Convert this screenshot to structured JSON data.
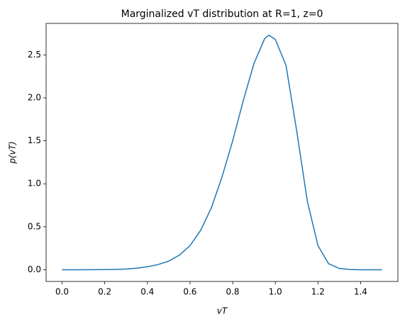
{
  "chart_data": {
    "type": "line",
    "title": "Marginalized vT distribution at R=1, z=0",
    "x_label": "vT",
    "y_label": "p(vT)",
    "x": [
      0,
      0.05,
      0.1,
      0.15,
      0.2,
      0.25,
      0.3,
      0.35,
      0.4,
      0.45,
      0.5,
      0.55,
      0.6,
      0.65,
      0.7,
      0.75,
      0.8,
      0.85,
      0.9,
      0.95,
      0.97,
      1.0,
      1.05,
      1.1,
      1.15,
      1.2,
      1.25,
      1.3,
      1.35,
      1.4,
      1.45,
      1.5
    ],
    "series": [
      {
        "color": "#1f77b4",
        "values": [
          0,
          0,
          0,
          0.001,
          0.002,
          0.004,
          0.008,
          0.018,
          0.035,
          0.06,
          0.1,
          0.17,
          0.28,
          0.46,
          0.72,
          1.08,
          1.5,
          1.97,
          2.4,
          2.69,
          2.73,
          2.68,
          2.38,
          1.62,
          0.8,
          0.28,
          0.07,
          0.015,
          0.003,
          0,
          0,
          0
        ]
      }
    ],
    "xlim": [
      -0.075,
      1.575
    ],
    "xticks": [
      {
        "value": 0,
        "label": "0.0"
      },
      0.2,
      0.4,
      0.6,
      0.8,
      {
        "value": 1,
        "label": "1.0"
      },
      1.2,
      1.4
    ],
    "ylim": [
      -0.1365,
      2.8665
    ],
    "yticks": [
      {
        "value": 0,
        "label": "0.0"
      },
      0.5,
      {
        "value": 1,
        "label": "1.0"
      },
      1.5,
      {
        "value": 2,
        "label": "2.0"
      },
      2.5
    ],
    "grid": false
  }
}
